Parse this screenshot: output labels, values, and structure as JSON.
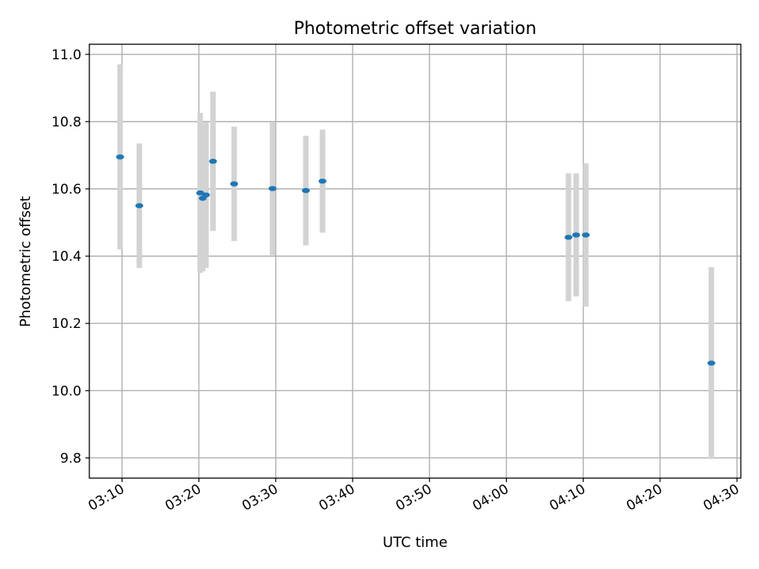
{
  "chart_data": {
    "type": "scatter",
    "title": "Photometric offset variation",
    "xlabel": "UTC time",
    "ylabel": "Photometric offset",
    "x_is_time": true,
    "xlim": [
      "03:05:45",
      "04:30:30"
    ],
    "ylim": [
      9.74,
      11.03
    ],
    "x_ticks": [
      "03:10",
      "03:20",
      "03:30",
      "03:40",
      "03:50",
      "04:00",
      "04:10",
      "04:20",
      "04:30"
    ],
    "y_ticks": [
      9.8,
      10.0,
      10.2,
      10.4,
      10.6,
      10.8,
      11.0
    ],
    "y_tick_labels": [
      "9.8",
      "10.0",
      "10.2",
      "10.4",
      "10.6",
      "10.8",
      "11.0"
    ],
    "grid": true,
    "legend": null,
    "point_color": "#1f77b4",
    "errorbar_color": "#d3d3d3",
    "points": [
      {
        "x": "03:09:45",
        "y": 10.695,
        "ylow": 10.42,
        "yhigh": 10.97
      },
      {
        "x": "03:12:15",
        "y": 10.55,
        "ylow": 10.365,
        "yhigh": 10.735
      },
      {
        "x": "03:20:10",
        "y": 10.588,
        "ylow": 10.35,
        "yhigh": 10.826
      },
      {
        "x": "03:20:30",
        "y": 10.572,
        "ylow": 10.355,
        "yhigh": 10.789
      },
      {
        "x": "03:20:55",
        "y": 10.582,
        "ylow": 10.365,
        "yhigh": 10.799
      },
      {
        "x": "03:21:50",
        "y": 10.682,
        "ylow": 10.475,
        "yhigh": 10.889
      },
      {
        "x": "03:24:35",
        "y": 10.615,
        "ylow": 10.445,
        "yhigh": 10.785
      },
      {
        "x": "03:29:35",
        "y": 10.601,
        "ylow": 10.403,
        "yhigh": 10.799
      },
      {
        "x": "03:33:55",
        "y": 10.595,
        "ylow": 10.432,
        "yhigh": 10.758
      },
      {
        "x": "03:36:05",
        "y": 10.623,
        "ylow": 10.47,
        "yhigh": 10.776
      },
      {
        "x": "04:08:05",
        "y": 10.456,
        "ylow": 10.266,
        "yhigh": 10.646
      },
      {
        "x": "04:09:05",
        "y": 10.463,
        "ylow": 10.28,
        "yhigh": 10.646
      },
      {
        "x": "04:10:20",
        "y": 10.463,
        "ylow": 10.25,
        "yhigh": 10.676
      },
      {
        "x": "04:26:40",
        "y": 10.082,
        "ylow": 9.797,
        "yhigh": 10.367
      }
    ]
  }
}
